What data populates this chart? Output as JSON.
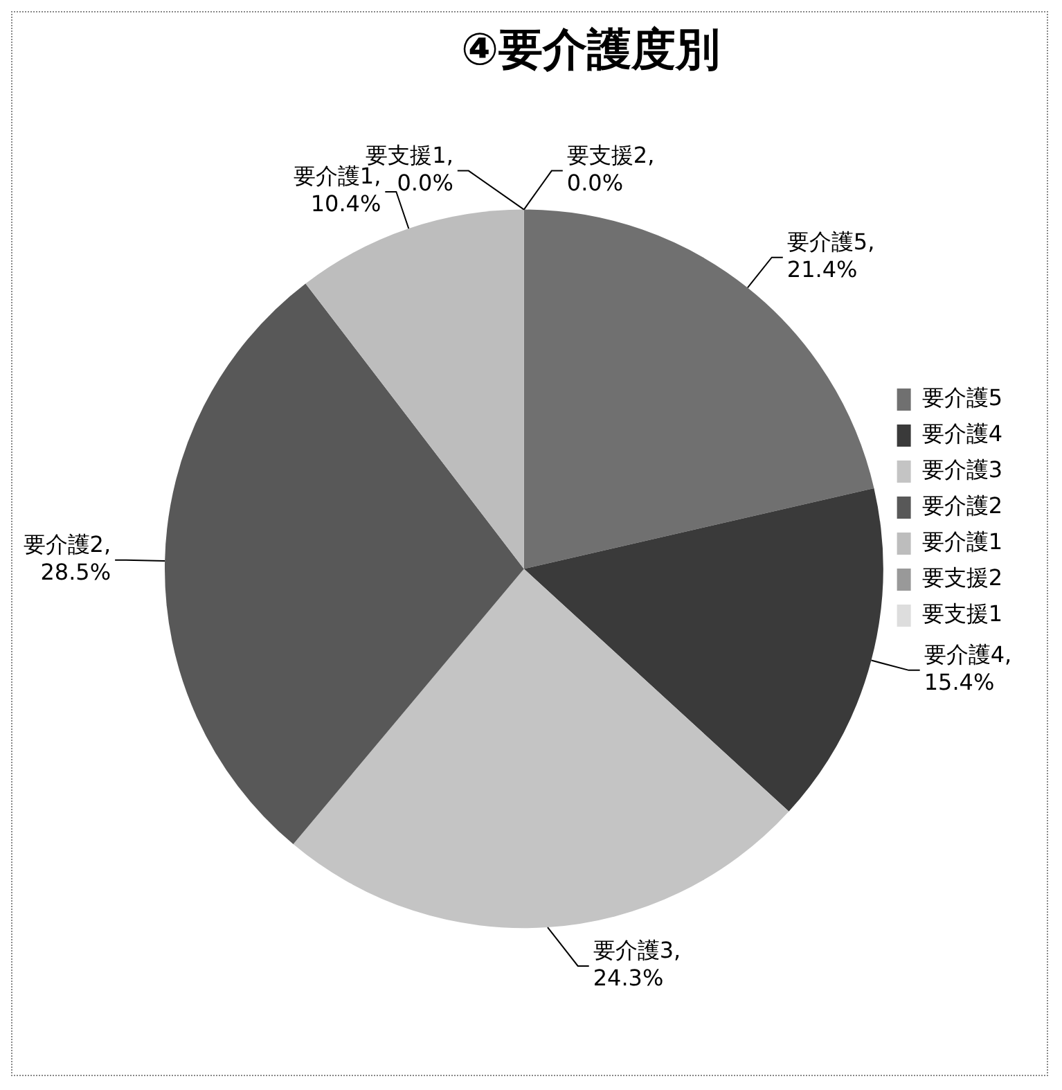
{
  "chart_data": {
    "type": "pie",
    "title": "④要介護度別",
    "categories": [
      "要介護5",
      "要介護4",
      "要介護3",
      "要介護2",
      "要介護1",
      "要支援2",
      "要支援1"
    ],
    "values": [
      21.4,
      15.4,
      24.3,
      28.5,
      10.4,
      0.0,
      0.0
    ],
    "value_labels": [
      "要介護5,\n21.4%",
      "要介護4,\n15.4%",
      "要介護3,\n24.3%",
      "要介護2,\n28.5%",
      "要介護1,\n10.4%",
      "要支援2,\n0.0%",
      "要支援1,\n0.0%"
    ],
    "colors": [
      "#707070",
      "#3a3a3a",
      "#c4c4c4",
      "#585858",
      "#bdbdbd",
      "#999999",
      "#dddddd"
    ],
    "legend": "right"
  }
}
